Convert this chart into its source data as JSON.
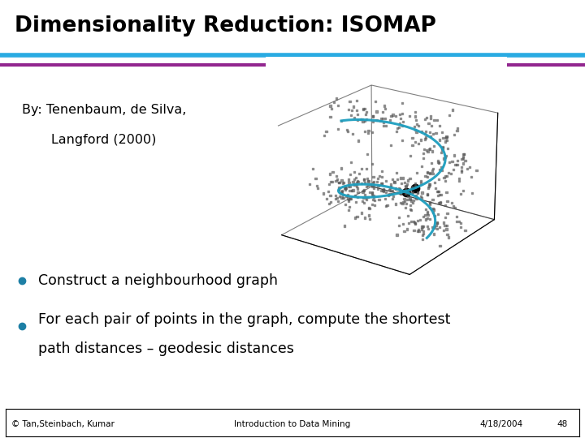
{
  "title": "Dimensionality Reduction: ISOMAP",
  "subtitle_line1": "By: Tenenbaum, de Silva,",
  "subtitle_line2": "       Langford (2000)",
  "bullet1": "Construct a neighbourhood graph",
  "bullet2a": "For each pair of points in the graph, compute the shortest",
  "bullet2b": "path distances – geodesic distances",
  "footer_left": "© Tan,Steinbach, Kumar",
  "footer_center": "Introduction to Data Mining",
  "footer_right": "4/18/2004",
  "footer_page": "48",
  "line1_color": "#29ABE2",
  "line2_color": "#92278F",
  "bg_color": "#FFFFFF",
  "bullet_color": "#1D7FA5",
  "title_color": "#000000",
  "body_color": "#000000",
  "spiral_color": "#1D9EBF",
  "scatter_color": "#555555",
  "footer_box_color": "#000000"
}
